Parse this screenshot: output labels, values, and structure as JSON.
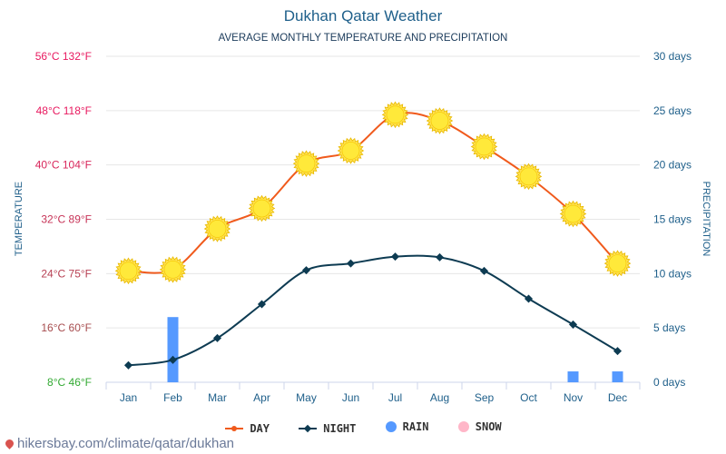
{
  "chart_data": {
    "type": "line",
    "title": "Dukhan Qatar Weather",
    "subtitle": "AVERAGE MONTHLY TEMPERATURE AND PRECIPITATION",
    "ylabel_left": "TEMPERATURE",
    "ylabel_right": "PRECIPITATION",
    "categories": [
      "Jan",
      "Feb",
      "Mar",
      "Apr",
      "May",
      "Jun",
      "Jul",
      "Aug",
      "Sep",
      "Oct",
      "Nov",
      "Dec"
    ],
    "y_left_ticks": [
      "8°C 46°F",
      "16°C 60°F",
      "24°C 75°F",
      "32°C 89°F",
      "40°C 104°F",
      "48°C 118°F",
      "56°C 132°F"
    ],
    "y_left_range_c": [
      8,
      56
    ],
    "y_right_ticks": [
      "0 days",
      "5 days",
      "10 days",
      "15 days",
      "20 days",
      "25 days",
      "30 days"
    ],
    "y_right_range_days": [
      0,
      30
    ],
    "series": [
      {
        "name": "DAY",
        "unit": "°C",
        "color": "#f05a1c",
        "marker": "sun-icon",
        "values": [
          24.4,
          24.6,
          30.6,
          33.6,
          40.2,
          42.1,
          47.4,
          46.5,
          42.7,
          38.3,
          32.8,
          25.5
        ]
      },
      {
        "name": "NIGHT",
        "unit": "°C",
        "color": "#0d3b52",
        "marker": "diamond",
        "values": [
          10.5,
          11.3,
          14.5,
          19.5,
          24.5,
          25.5,
          26.5,
          26.4,
          24.4,
          20.3,
          16.5,
          12.6
        ]
      },
      {
        "name": "RAIN",
        "unit": "days",
        "color": "#5599ff",
        "values": [
          0,
          6,
          0,
          0,
          0,
          0,
          0,
          0,
          0,
          0,
          1,
          1
        ]
      },
      {
        "name": "SNOW",
        "unit": "days",
        "color": "#ffb6c8",
        "values": [
          0,
          0,
          0,
          0,
          0,
          0,
          0,
          0,
          0,
          0,
          0,
          0
        ]
      }
    ],
    "grid": true,
    "legend_position": "bottom"
  },
  "colors": {
    "left_tick_top": "#e8195f",
    "left_tick_bottom": "#33aa33",
    "right_tick": "#1e5f8a",
    "axis_label": "#1e5f8a",
    "grid": "#e6e6e6"
  },
  "legend": [
    {
      "label": "DAY",
      "icon": "line-dot-icon",
      "color": "#f05a1c"
    },
    {
      "label": "NIGHT",
      "icon": "line-diamond-icon",
      "color": "#0d3b52"
    },
    {
      "label": "RAIN",
      "icon": "circle-icon",
      "color": "#5599ff"
    },
    {
      "label": "SNOW",
      "icon": "circle-icon",
      "color": "#ffb6c8"
    }
  ],
  "source": {
    "text": "hikersbay.com/climate/qatar/dukhan",
    "icon": "map-pin-icon"
  }
}
